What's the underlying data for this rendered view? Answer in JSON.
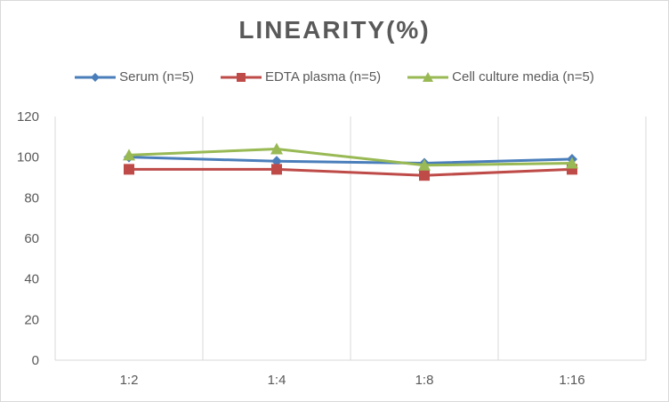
{
  "chart_data": {
    "type": "line",
    "title": "LINEARITY(%)",
    "categories": [
      "1:2",
      "1:4",
      "1:8",
      "1:16"
    ],
    "ylim": [
      0,
      120
    ],
    "yticks": [
      0,
      20,
      40,
      60,
      80,
      100,
      120
    ],
    "grid": "vertical",
    "legend_position": "top",
    "series": [
      {
        "name": "Serum (n=5)",
        "values": [
          100,
          98,
          97,
          99
        ],
        "color": "#4a7ebb",
        "marker": "diamond"
      },
      {
        "name": "EDTA plasma (n=5)",
        "values": [
          94,
          94,
          91,
          94
        ],
        "color": "#be4b48",
        "marker": "square"
      },
      {
        "name": "Cell culture media (n=5)",
        "values": [
          101,
          104,
          96,
          97
        ],
        "color": "#98b954",
        "marker": "triangle"
      }
    ]
  }
}
